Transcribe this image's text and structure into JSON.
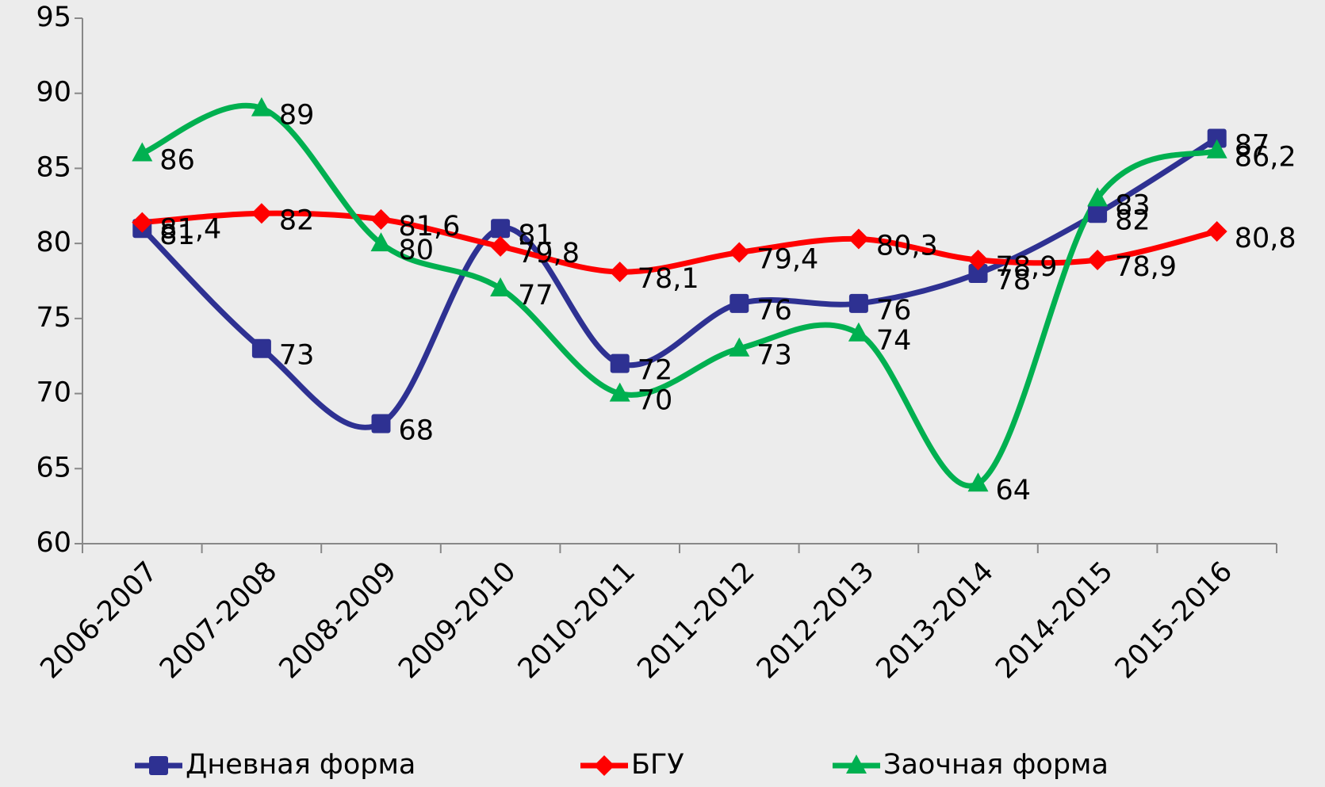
{
  "chart_data": {
    "type": "line",
    "categories": [
      "2006-2007",
      "2007-2008",
      "2008-2009",
      "2009-2010",
      "2010-2011",
      "2011-2012",
      "2012-2013",
      "2013-2014",
      "2014-2015",
      "2015-2016"
    ],
    "series": [
      {
        "name": "Дневная форма",
        "color": "#2e3192",
        "values": [
          81,
          73,
          68,
          81,
          72,
          76,
          76,
          78,
          82,
          87
        ],
        "value_labels": [
          "81",
          "73",
          "68",
          "81",
          "72",
          "76",
          "76",
          "78",
          "82",
          "87"
        ]
      },
      {
        "name": "БГУ",
        "color": "#ff0000",
        "values": [
          81.4,
          82,
          81.6,
          79.8,
          78.1,
          79.4,
          80.3,
          78.9,
          78.9,
          80.8
        ],
        "value_labels": [
          "81,4",
          "82",
          "81,6",
          "79,8",
          "78,1",
          "79,4",
          "80,3",
          "78,9",
          "78,9",
          "80,8"
        ]
      },
      {
        "name": "Заочная форма",
        "color": "#00b050",
        "values": [
          86,
          89,
          80,
          77,
          70,
          73,
          74,
          64,
          83,
          86.2
        ],
        "value_labels": [
          "86",
          "89",
          "80",
          "77",
          "70",
          "73",
          "74",
          "64",
          "83",
          "86,2"
        ]
      }
    ],
    "ylim": [
      60,
      95
    ],
    "yticks": [
      60,
      65,
      70,
      75,
      80,
      85,
      90,
      95
    ],
    "grid": false,
    "legend": "bottom"
  }
}
